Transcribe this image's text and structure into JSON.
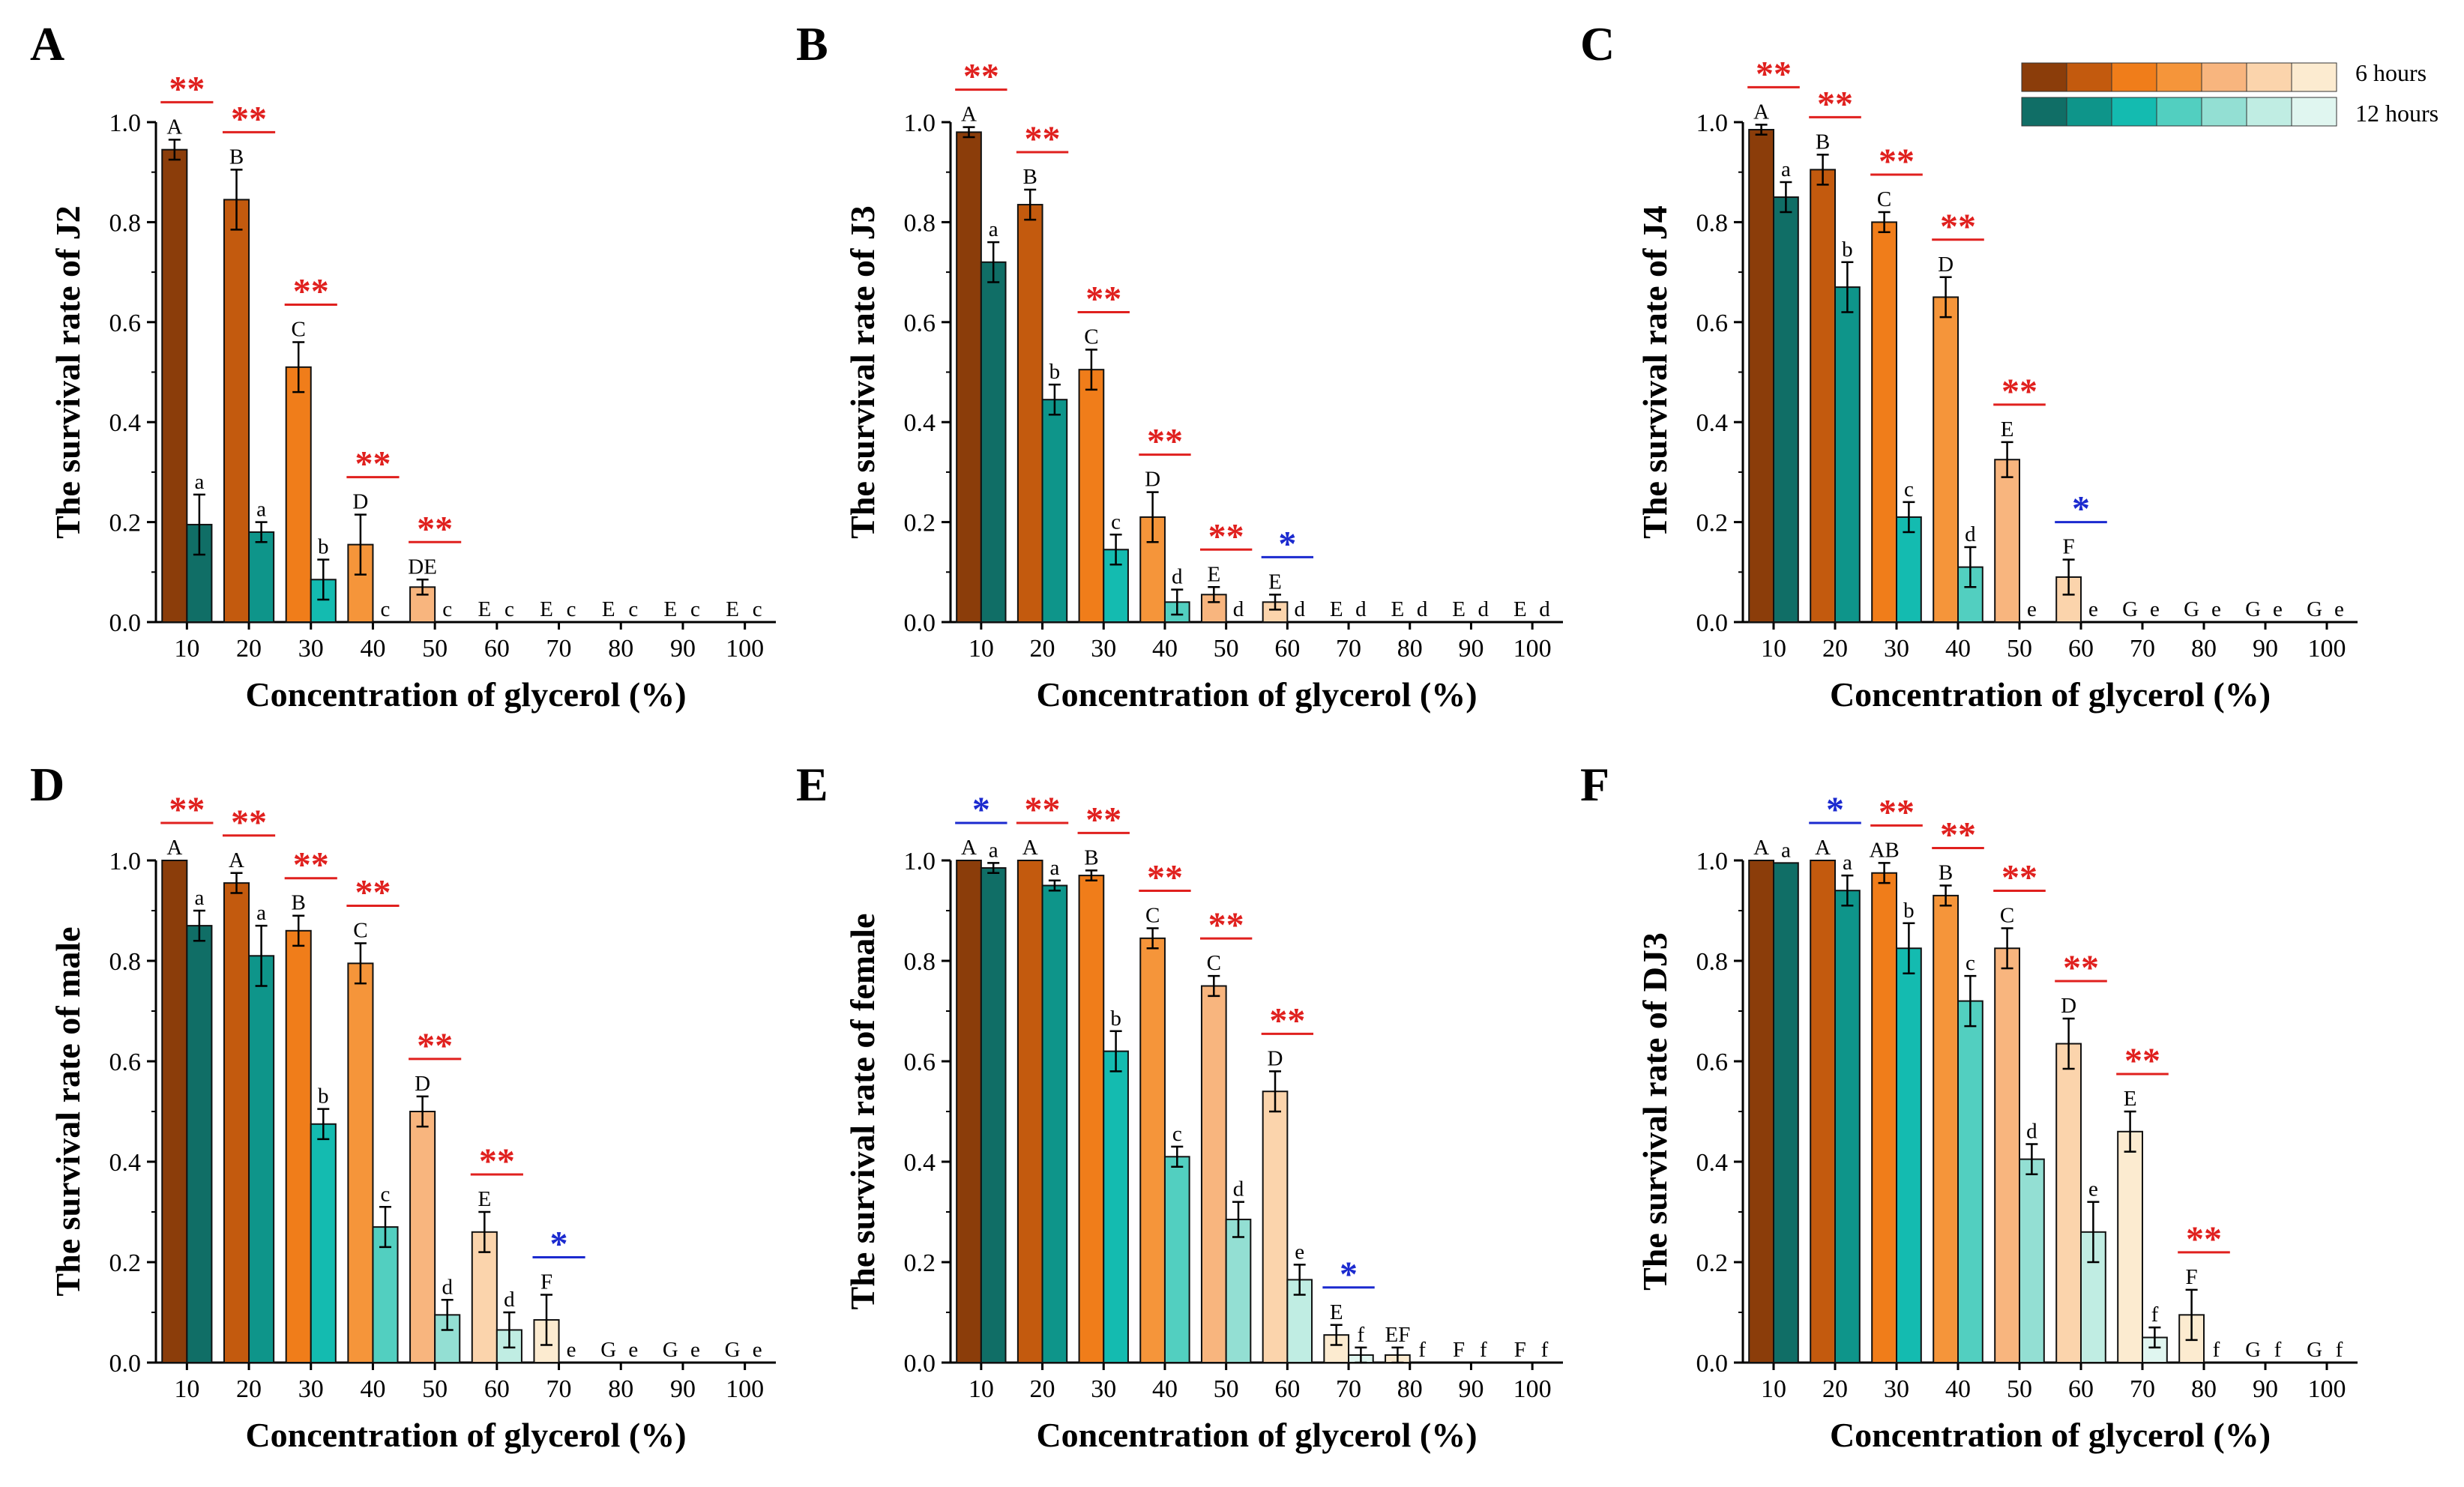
{
  "colors": {
    "h6": [
      "#8B3D0A",
      "#C35A0E",
      "#F07D1A",
      "#F5953A",
      "#F8B57E",
      "#FBD4AC",
      "#FCEBD0"
    ],
    "h12": [
      "#106E66",
      "#0E958A",
      "#14BBB0",
      "#52CFC0",
      "#93DFD3",
      "#C0EDE3",
      "#E0F6F0"
    ],
    "sig_red": "#E0201E",
    "sig_blue": "#1B2ACF"
  },
  "legend": {
    "label_6h": "6 hours",
    "label_12h": "12 hours"
  },
  "chart_data": [
    {
      "type": "bar",
      "panel": "A",
      "ylabel": "The survival rate of J2",
      "xlabel": "Concentration of glycerol (%)",
      "categories": [
        "10",
        "20",
        "30",
        "40",
        "50",
        "60",
        "70",
        "80",
        "90",
        "100"
      ],
      "ylim": [
        0,
        1.0
      ],
      "yticks": [
        "0.0",
        "0.2",
        "0.4",
        "0.6",
        "0.8",
        "1.0"
      ],
      "series": [
        {
          "name": "6 hours",
          "values": [
            0.945,
            0.845,
            0.51,
            0.155,
            0.07,
            0,
            0,
            0,
            0,
            0
          ],
          "errors": [
            0.02,
            0.06,
            0.05,
            0.06,
            0.015,
            0,
            0,
            0,
            0,
            0
          ],
          "letters": [
            "A",
            "B",
            "C",
            "D",
            "DE",
            "E",
            "E",
            "E",
            "E",
            "E"
          ]
        },
        {
          "name": "12 hours",
          "values": [
            0.195,
            0.18,
            0.085,
            0,
            0,
            0,
            0,
            0,
            0,
            0
          ],
          "errors": [
            0.06,
            0.02,
            0.04,
            0,
            0,
            0,
            0,
            0,
            0,
            0
          ],
          "letters": [
            "a",
            "a",
            "b",
            "c",
            "c",
            "c",
            "c",
            "c",
            "c",
            "c"
          ]
        }
      ],
      "significance": [
        "**",
        "**",
        "**",
        "**",
        "**",
        "",
        "",
        "",
        "",
        ""
      ]
    },
    {
      "type": "bar",
      "panel": "B",
      "ylabel": "The survival rate of J3",
      "xlabel": "Concentration of glycerol (%)",
      "categories": [
        "10",
        "20",
        "30",
        "40",
        "50",
        "60",
        "70",
        "80",
        "90",
        "100"
      ],
      "ylim": [
        0,
        1.0
      ],
      "yticks": [
        "0.0",
        "0.2",
        "0.4",
        "0.6",
        "0.8",
        "1.0"
      ],
      "series": [
        {
          "name": "6 hours",
          "values": [
            0.98,
            0.835,
            0.505,
            0.21,
            0.055,
            0.04,
            0,
            0,
            0,
            0
          ],
          "errors": [
            0.01,
            0.03,
            0.04,
            0.05,
            0.015,
            0.015,
            0,
            0,
            0,
            0
          ],
          "letters": [
            "A",
            "B",
            "C",
            "D",
            "E",
            "E",
            "E",
            "E",
            "E",
            "E"
          ]
        },
        {
          "name": "12 hours",
          "values": [
            0.72,
            0.445,
            0.145,
            0.04,
            0,
            0,
            0,
            0,
            0,
            0
          ],
          "errors": [
            0.04,
            0.03,
            0.03,
            0.025,
            0,
            0,
            0,
            0,
            0,
            0
          ],
          "letters": [
            "a",
            "b",
            "c",
            "d",
            "d",
            "d",
            "d",
            "d",
            "d",
            "d"
          ]
        }
      ],
      "significance": [
        "**",
        "**",
        "**",
        "**",
        "**",
        "*",
        "",
        "",
        "",
        ""
      ]
    },
    {
      "type": "bar",
      "panel": "C",
      "ylabel": "The survival rate of J4",
      "xlabel": "Concentration of glycerol (%)",
      "categories": [
        "10",
        "20",
        "30",
        "40",
        "50",
        "60",
        "70",
        "80",
        "90",
        "100"
      ],
      "ylim": [
        0,
        1.0
      ],
      "yticks": [
        "0.0",
        "0.2",
        "0.4",
        "0.6",
        "0.8",
        "1.0"
      ],
      "series": [
        {
          "name": "6 hours",
          "values": [
            0.985,
            0.905,
            0.8,
            0.65,
            0.325,
            0.09,
            0,
            0,
            0,
            0
          ],
          "errors": [
            0.01,
            0.03,
            0.02,
            0.04,
            0.035,
            0.035,
            0,
            0,
            0,
            0
          ],
          "letters": [
            "A",
            "B",
            "C",
            "D",
            "E",
            "F",
            "G",
            "G",
            "G",
            "G"
          ]
        },
        {
          "name": "12 hours",
          "values": [
            0.85,
            0.67,
            0.21,
            0.11,
            0,
            0,
            0,
            0,
            0,
            0
          ],
          "errors": [
            0.03,
            0.05,
            0.03,
            0.04,
            0,
            0,
            0,
            0,
            0,
            0
          ],
          "letters": [
            "a",
            "b",
            "c",
            "d",
            "e",
            "e",
            "e",
            "e",
            "e",
            "e"
          ]
        }
      ],
      "significance": [
        "**",
        "**",
        "**",
        "**",
        "**",
        "*",
        "",
        "",
        "",
        ""
      ]
    },
    {
      "type": "bar",
      "panel": "D",
      "ylabel": "The survival rate of male",
      "xlabel": "Concentration of glycerol (%)",
      "categories": [
        "10",
        "20",
        "30",
        "40",
        "50",
        "60",
        "70",
        "80",
        "90",
        "100"
      ],
      "ylim": [
        0,
        1.0
      ],
      "yticks": [
        "0.0",
        "0.2",
        "0.4",
        "0.6",
        "0.8",
        "1.0"
      ],
      "series": [
        {
          "name": "6 hours",
          "values": [
            1.0,
            0.955,
            0.86,
            0.795,
            0.5,
            0.26,
            0.085,
            0,
            0,
            0
          ],
          "errors": [
            0,
            0.02,
            0.03,
            0.04,
            0.03,
            0.04,
            0.05,
            0,
            0,
            0
          ],
          "letters": [
            "A",
            "A",
            "B",
            "C",
            "D",
            "E",
            "F",
            "G",
            "G",
            "G"
          ]
        },
        {
          "name": "12 hours",
          "values": [
            0.87,
            0.81,
            0.475,
            0.27,
            0.095,
            0.065,
            0,
            0,
            0,
            0
          ],
          "errors": [
            0.03,
            0.06,
            0.03,
            0.04,
            0.03,
            0.035,
            0,
            0,
            0,
            0
          ],
          "letters": [
            "a",
            "a",
            "b",
            "c",
            "d",
            "d",
            "e",
            "e",
            "e",
            "e"
          ]
        }
      ],
      "significance": [
        "**",
        "**",
        "**",
        "**",
        "**",
        "**",
        "*",
        "",
        "",
        ""
      ]
    },
    {
      "type": "bar",
      "panel": "E",
      "ylabel": "The survival rate of female",
      "xlabel": "Concentration of glycerol (%)",
      "categories": [
        "10",
        "20",
        "30",
        "40",
        "50",
        "60",
        "70",
        "80",
        "90",
        "100"
      ],
      "ylim": [
        0,
        1.0
      ],
      "yticks": [
        "0.0",
        "0.2",
        "0.4",
        "0.6",
        "0.8",
        "1.0"
      ],
      "series": [
        {
          "name": "6 hours",
          "values": [
            1.0,
            1.0,
            0.97,
            0.845,
            0.75,
            0.54,
            0.055,
            0.015,
            0,
            0
          ],
          "errors": [
            0,
            0,
            0.01,
            0.02,
            0.02,
            0.04,
            0.02,
            0.015,
            0,
            0
          ],
          "letters": [
            "A",
            "A",
            "B",
            "C",
            "C",
            "D",
            "E",
            "EF",
            "F",
            "F"
          ]
        },
        {
          "name": "12 hours",
          "values": [
            0.985,
            0.95,
            0.62,
            0.41,
            0.285,
            0.165,
            0.015,
            0,
            0,
            0
          ],
          "errors": [
            0.01,
            0.01,
            0.04,
            0.02,
            0.035,
            0.03,
            0.015,
            0,
            0,
            0
          ],
          "letters": [
            "a",
            "a",
            "b",
            "c",
            "d",
            "e",
            "f",
            "f",
            "f",
            "f"
          ]
        }
      ],
      "significance": [
        "*",
        "**",
        "**",
        "**",
        "**",
        "**",
        "*",
        "",
        "",
        ""
      ]
    },
    {
      "type": "bar",
      "panel": "F",
      "ylabel": "The survival rate of DJ3",
      "xlabel": "Concentration of glycerol (%)",
      "categories": [
        "10",
        "20",
        "30",
        "40",
        "50",
        "60",
        "70",
        "80",
        "90",
        "100"
      ],
      "ylim": [
        0,
        1.0
      ],
      "yticks": [
        "0.0",
        "0.2",
        "0.4",
        "0.6",
        "0.8",
        "1.0"
      ],
      "series": [
        {
          "name": "6 hours",
          "values": [
            1.0,
            1.0,
            0.975,
            0.93,
            0.825,
            0.635,
            0.46,
            0.095,
            0,
            0
          ],
          "errors": [
            0,
            0,
            0.02,
            0.02,
            0.04,
            0.05,
            0.04,
            0.05,
            0,
            0
          ],
          "letters": [
            "A",
            "A",
            "AB",
            "B",
            "C",
            "D",
            "E",
            "F",
            "G",
            "G"
          ]
        },
        {
          "name": "12 hours",
          "values": [
            0.995,
            0.94,
            0.825,
            0.72,
            0.405,
            0.26,
            0.05,
            0,
            0,
            0
          ],
          "errors": [
            0,
            0.03,
            0.05,
            0.05,
            0.03,
            0.06,
            0.02,
            0,
            0,
            0
          ],
          "letters": [
            "a",
            "a",
            "b",
            "c",
            "d",
            "e",
            "f",
            "f",
            "f",
            "f"
          ]
        }
      ],
      "significance": [
        "",
        "*",
        "**",
        "**",
        "**",
        "**",
        "**",
        "**",
        "",
        ""
      ]
    }
  ]
}
